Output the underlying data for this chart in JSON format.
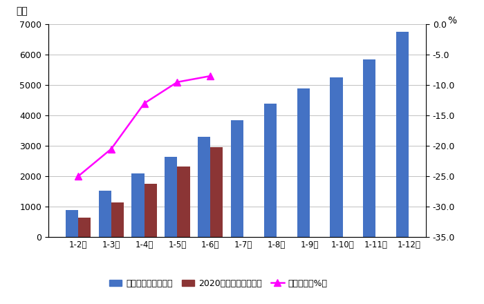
{
  "categories": [
    "1-2月",
    "1-3月",
    "1-4月",
    "1-5月",
    "1-6月",
    "1-7月",
    "1-8月",
    "1-9月",
    "1-10月",
    "1-11月",
    "1-12月"
  ],
  "comparable_period": [
    880,
    1520,
    2100,
    2650,
    3300,
    3850,
    4380,
    4880,
    5250,
    5850,
    6750
  ],
  "actual_2020": [
    650,
    1150,
    1750,
    2320,
    2950,
    null,
    null,
    null,
    null,
    null,
    null
  ],
  "yoy_growth": [
    -25.0,
    -20.5,
    -13.0,
    -9.5,
    -8.5,
    null,
    null,
    null,
    null,
    null,
    null
  ],
  "bar_color_blue": "#4472C4",
  "bar_color_red": "#8B3535",
  "line_color": "#FF00FF",
  "left_ylabel": "亿元",
  "right_ylabel": "%",
  "left_ylim": [
    0,
    7000
  ],
  "left_yticks": [
    0,
    1000,
    2000,
    3000,
    4000,
    5000,
    6000,
    7000
  ],
  "right_ylim": [
    -35.0,
    0.0
  ],
  "right_yticks": [
    -35.0,
    -30.0,
    -25.0,
    -20.0,
    -15.0,
    -10.0,
    -5.0,
    0.0
  ],
  "legend_labels": [
    "可比同期数（亿元）",
    "2020实际完成（亿元）",
    "同比增长（%）"
  ],
  "background_color": "#FFFFFF",
  "grid_color": "#C0C0C0",
  "bar_width": 0.38,
  "figsize": [
    7.0,
    4.4
  ],
  "dpi": 100
}
